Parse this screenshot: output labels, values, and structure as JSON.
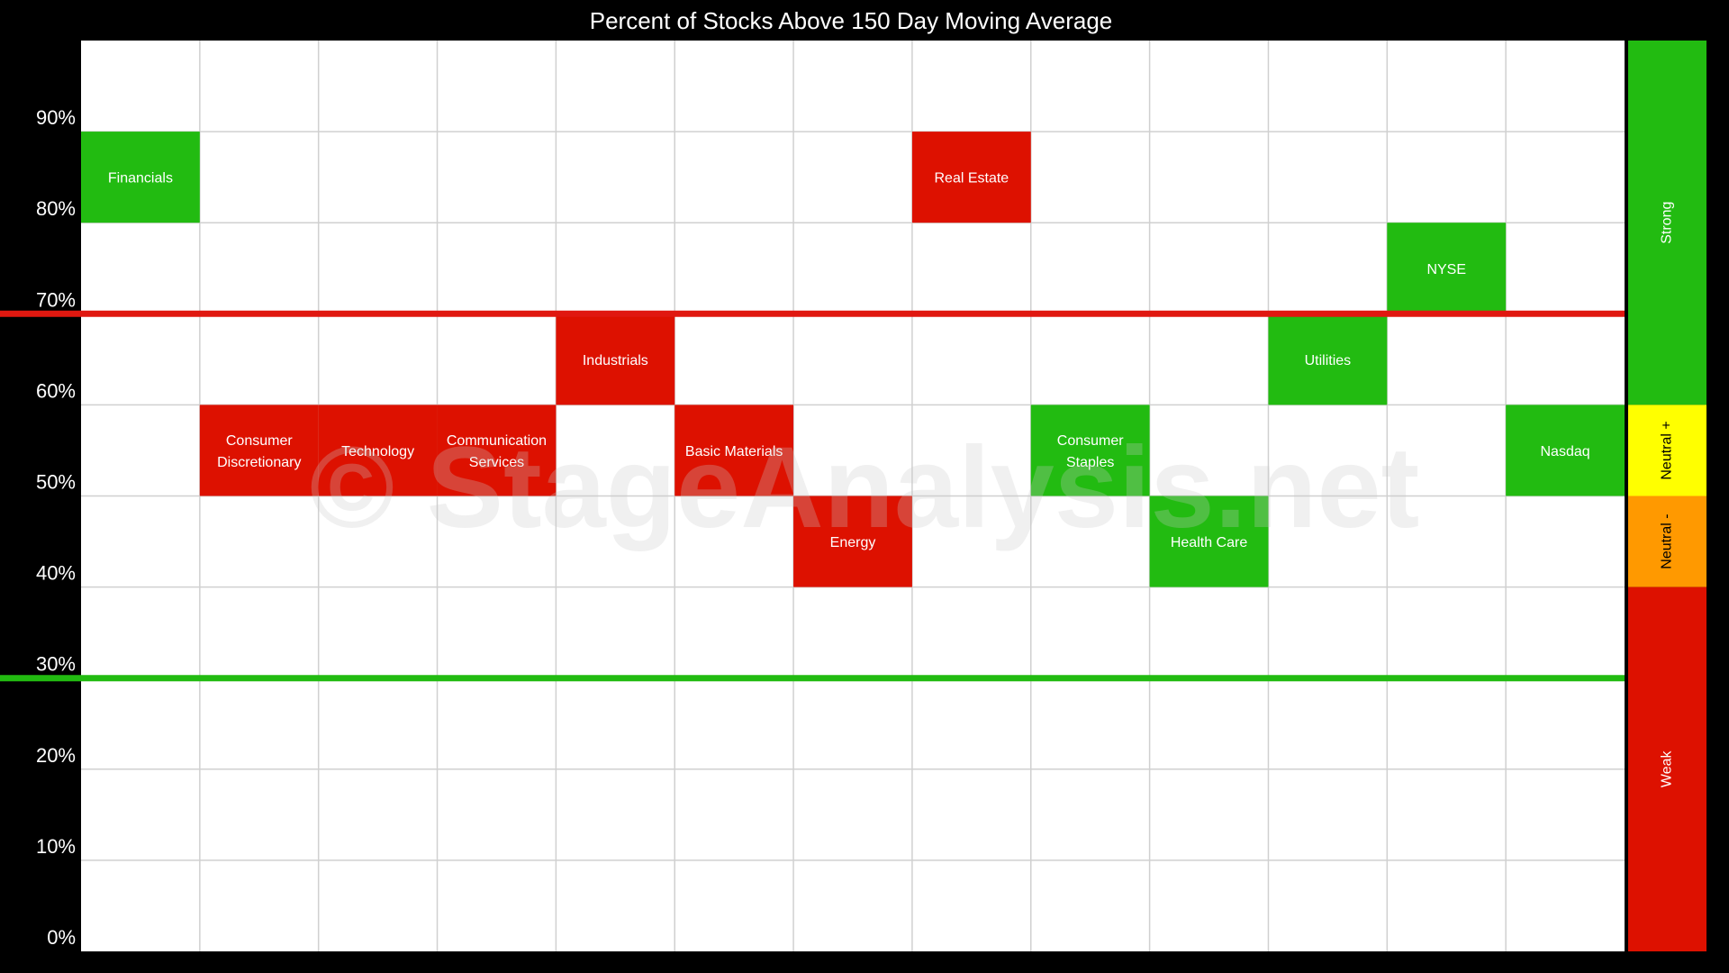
{
  "chart_data": {
    "type": "heatmap",
    "title": "Percent of Stocks Above 150 Day Moving Average",
    "ylim": [
      0,
      100
    ],
    "y_ticks": [
      "0%",
      "10%",
      "20%",
      "30%",
      "40%",
      "50%",
      "60%",
      "70%",
      "80%",
      "90%"
    ],
    "grid": true,
    "categories": [
      "Financials",
      "Consumer Discretionary",
      "Technology",
      "Communication Services",
      "Industrials",
      "Basic Materials",
      "Energy",
      "Real Estate",
      "Consumer Staples",
      "Health Care",
      "Utilities",
      "NYSE",
      "Nasdaq"
    ],
    "cells": [
      {
        "label": [
          "Financials"
        ],
        "bin": [
          80,
          90
        ],
        "status": "green"
      },
      {
        "label": [
          "Consumer",
          "Discretionary"
        ],
        "bin": [
          50,
          60
        ],
        "status": "red"
      },
      {
        "label": [
          "Technology"
        ],
        "bin": [
          50,
          60
        ],
        "status": "red"
      },
      {
        "label": [
          "Communication",
          "Services"
        ],
        "bin": [
          50,
          60
        ],
        "status": "red"
      },
      {
        "label": [
          "Industrials"
        ],
        "bin": [
          60,
          70
        ],
        "status": "red"
      },
      {
        "label": [
          "Basic Materials"
        ],
        "bin": [
          50,
          60
        ],
        "status": "red"
      },
      {
        "label": [
          "Energy"
        ],
        "bin": [
          40,
          50
        ],
        "status": "red"
      },
      {
        "label": [
          "Real Estate"
        ],
        "bin": [
          80,
          90
        ],
        "status": "red"
      },
      {
        "label": [
          "Consumer",
          "Staples"
        ],
        "bin": [
          50,
          60
        ],
        "status": "green"
      },
      {
        "label": [
          "Health Care"
        ],
        "bin": [
          40,
          50
        ],
        "status": "green"
      },
      {
        "label": [
          "Utilities"
        ],
        "bin": [
          60,
          70
        ],
        "status": "green"
      },
      {
        "label": [
          "NYSE"
        ],
        "bin": [
          70,
          80
        ],
        "status": "green"
      },
      {
        "label": [
          "Nasdaq"
        ],
        "bin": [
          50,
          60
        ],
        "status": "green"
      }
    ],
    "threshold_lines": [
      {
        "value": 70,
        "color": "#e01810"
      },
      {
        "value": 30,
        "color": "#22bb11"
      }
    ],
    "zones": [
      {
        "label": "Strong",
        "range": [
          60,
          100
        ],
        "color": "#22bb11"
      },
      {
        "label": "Neutral +",
        "range": [
          50,
          60
        ],
        "color": "#ffff00"
      },
      {
        "label": "Neutral -",
        "range": [
          40,
          50
        ],
        "color": "#ff9900"
      },
      {
        "label": "Weak",
        "range": [
          0,
          40
        ],
        "color": "#dd1100"
      }
    ]
  },
  "watermark": "© StageAnalysis.net",
  "colors": {
    "green": "#22bb11",
    "red": "#dd1100",
    "grid": "#d0d0d0",
    "plot_bg": "#ffffff",
    "page_bg": "#000000"
  }
}
